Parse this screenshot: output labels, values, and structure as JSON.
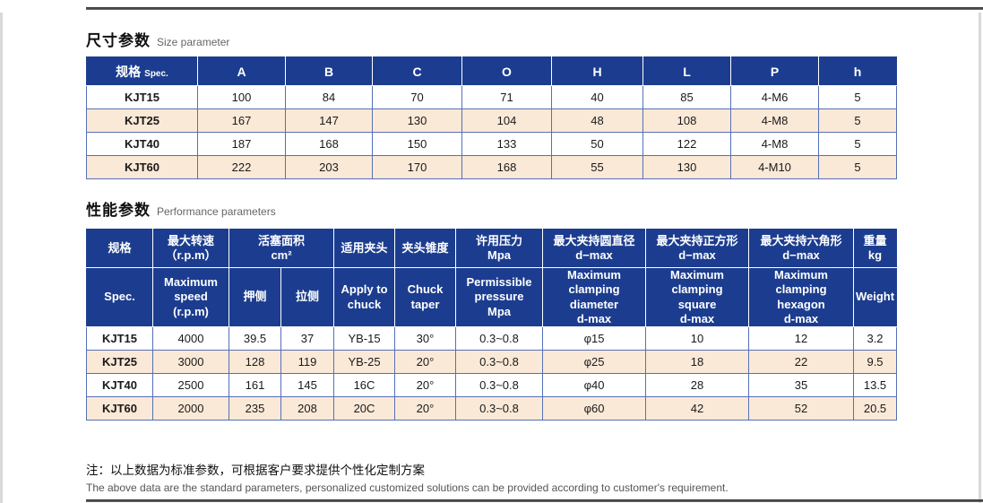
{
  "colors": {
    "header_blue": "#1c3d8f",
    "border_blue": "#5570b6",
    "stripe_cream": "#fbe9d7"
  },
  "note": {
    "zh": "注：以上数据为标准参数，可根据客户要求提供个性化定制方案",
    "en": "The above data are the standard parameters, personalized customized solutions can be provided according to customer's requirement."
  },
  "size_section": {
    "title_zh": "尺寸参数",
    "title_en": "Size parameter",
    "table": {
      "spec_header_zh": "规格",
      "spec_header_en": "Spec.",
      "columns": [
        "A",
        "B",
        "C",
        "O",
        "H",
        "L",
        "P",
        "h"
      ],
      "rows": [
        {
          "spec": "KJT15",
          "values": [
            "100",
            "84",
            "70",
            "71",
            "40",
            "85",
            "4-M6",
            "5"
          ]
        },
        {
          "spec": "KJT25",
          "values": [
            "167",
            "147",
            "130",
            "104",
            "48",
            "108",
            "4-M8",
            "5"
          ]
        },
        {
          "spec": "KJT40",
          "values": [
            "187",
            "168",
            "150",
            "133",
            "50",
            "122",
            "4-M8",
            "5"
          ]
        },
        {
          "spec": "KJT60",
          "values": [
            "222",
            "203",
            "170",
            "168",
            "55",
            "130",
            "4-M10",
            "5"
          ]
        }
      ]
    }
  },
  "perf_section": {
    "title_zh": "性能参数",
    "title_en": "Performance parameters",
    "table": {
      "header_row1": [
        {
          "lines": [
            "规格"
          ],
          "colspan": 1
        },
        {
          "lines": [
            "最大转速",
            "（r.p.m）"
          ],
          "colspan": 1
        },
        {
          "lines": [
            "活塞面积",
            "cm²"
          ],
          "colspan": 2
        },
        {
          "lines": [
            "适用夹头"
          ],
          "colspan": 1
        },
        {
          "lines": [
            "夹头锥度"
          ],
          "colspan": 1
        },
        {
          "lines": [
            "许用压力",
            "Mpa"
          ],
          "colspan": 1
        },
        {
          "lines": [
            "最大夹持圆直径",
            "d−max"
          ],
          "colspan": 1
        },
        {
          "lines": [
            "最大夹持正方形",
            "d−max"
          ],
          "colspan": 1
        },
        {
          "lines": [
            "最大夹持六角形",
            "d−max"
          ],
          "colspan": 1
        },
        {
          "lines": [
            "重量",
            "kg"
          ],
          "colspan": 1
        }
      ],
      "header_row2": [
        {
          "lines": [
            "Spec."
          ],
          "small": true
        },
        {
          "lines": [
            "Maximum speed",
            "(r.p.m)"
          ],
          "small": true
        },
        {
          "lines": [
            "押侧"
          ],
          "small": false
        },
        {
          "lines": [
            "拉侧"
          ],
          "small": false
        },
        {
          "lines": [
            "Apply to",
            "chuck"
          ],
          "small": true
        },
        {
          "lines": [
            "Chuck",
            "taper"
          ],
          "small": true
        },
        {
          "lines": [
            "Permissible",
            "pressure",
            "Mpa"
          ],
          "small": true
        },
        {
          "lines": [
            "Maximum clamping",
            "diameter",
            "d-max"
          ],
          "small": true
        },
        {
          "lines": [
            "Maximum clamping",
            "square",
            "d-max"
          ],
          "small": true
        },
        {
          "lines": [
            "Maximum clamping",
            "hexagon",
            "d-max"
          ],
          "small": true
        },
        {
          "lines": [
            "Weight"
          ],
          "small": true
        }
      ],
      "rows": [
        {
          "spec": "KJT15",
          "values": [
            "4000",
            "39.5",
            "37",
            "YB-15",
            "30°",
            "0.3~0.8",
            "φ15",
            "10",
            "12",
            "3.2"
          ]
        },
        {
          "spec": "KJT25",
          "values": [
            "3000",
            "128",
            "119",
            "YB-25",
            "20°",
            "0.3~0.8",
            "φ25",
            "18",
            "22",
            "9.5"
          ]
        },
        {
          "spec": "KJT40",
          "values": [
            "2500",
            "161",
            "145",
            "16C",
            "20°",
            "0.3~0.8",
            "φ40",
            "28",
            "35",
            "13.5"
          ]
        },
        {
          "spec": "KJT60",
          "values": [
            "2000",
            "235",
            "208",
            "20C",
            "20°",
            "0.3~0.8",
            "φ60",
            "42",
            "52",
            "20.5"
          ]
        }
      ]
    }
  }
}
